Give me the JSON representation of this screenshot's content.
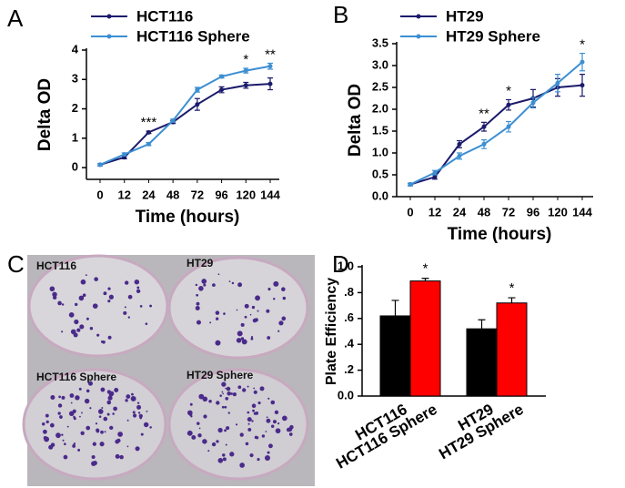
{
  "chart_data": [
    {
      "type": "line",
      "panel_label": "A",
      "x_label": "Time (hours)",
      "y_label": "Delta OD",
      "categories": [
        "0",
        "12",
        "24",
        "48",
        "72",
        "96",
        "120",
        "144"
      ],
      "ylim": [
        -0.4,
        4
      ],
      "yticks": [
        0,
        1,
        2,
        3,
        4
      ],
      "series": [
        {
          "name": "HCT116",
          "color": "#1b1a6b",
          "values": [
            0.1,
            0.35,
            1.2,
            1.55,
            2.15,
            2.65,
            2.8,
            2.85
          ],
          "errors": [
            0.04,
            0.05,
            0.04,
            0.05,
            0.2,
            0.1,
            0.1,
            0.2
          ]
        },
        {
          "name": "HCT116 Sphere",
          "color": "#3c8fd2",
          "values": [
            0.1,
            0.45,
            0.8,
            1.6,
            2.65,
            3.1,
            3.3,
            3.45
          ],
          "errors": [
            0.04,
            0.05,
            0.05,
            0.05,
            0.08,
            0.05,
            0.08,
            0.1
          ]
        }
      ],
      "annotations": [
        {
          "text": "***",
          "category": "24"
        },
        {
          "text": "*",
          "category": "120"
        },
        {
          "text": "**",
          "category": "144"
        }
      ]
    },
    {
      "type": "line",
      "panel_label": "B",
      "x_label": "Time (hours)",
      "y_label": "Delta OD",
      "categories": [
        "0",
        "12",
        "24",
        "48",
        "72",
        "96",
        "120",
        "144"
      ],
      "ylim": [
        0,
        3.5
      ],
      "yticks": [
        {
          "value": 0,
          "label": "0.0"
        },
        {
          "value": 0.5,
          "label": "0.5"
        },
        {
          "value": 1,
          "label": "1.0"
        },
        {
          "value": 1.5,
          "label": "1.5"
        },
        {
          "value": 2,
          "label": "2.0"
        },
        {
          "value": 2.5,
          "label": "2.5"
        },
        {
          "value": 3,
          "label": "3.0"
        },
        {
          "value": 3.5,
          "label": "3.5"
        }
      ],
      "series": [
        {
          "name": "HT29",
          "color": "#1b1a6b",
          "values": [
            0.28,
            0.45,
            1.2,
            1.6,
            2.1,
            2.25,
            2.5,
            2.55
          ],
          "errors": [
            0.03,
            0.05,
            0.08,
            0.1,
            0.12,
            0.2,
            0.2,
            0.25
          ]
        },
        {
          "name": "HT29 Sphere",
          "color": "#3c8fd2",
          "values": [
            0.28,
            0.55,
            0.93,
            1.2,
            1.6,
            2.15,
            2.6,
            3.08
          ],
          "errors": [
            0.03,
            0.05,
            0.07,
            0.1,
            0.12,
            0.12,
            0.2,
            0.2
          ]
        }
      ],
      "annotations": [
        {
          "text": "**",
          "category": "48"
        },
        {
          "text": "*",
          "category": "72"
        },
        {
          "text": "*",
          "category": "144"
        }
      ]
    },
    {
      "type": "bar",
      "panel_label": "D",
      "y_label": "Plate Efficiency",
      "categories": [
        "HCT116",
        "HCT116 Sphere",
        "HT29",
        "HT29 Sphere"
      ],
      "values": [
        0.62,
        0.89,
        0.52,
        0.72
      ],
      "errors": [
        0.12,
        0.02,
        0.07,
        0.04
      ],
      "colors": [
        "#000000",
        "#ff0000",
        "#000000",
        "#ff0000"
      ],
      "ylim": [
        0,
        1
      ],
      "yticks": [
        {
          "value": 0,
          "label": "0.0"
        },
        {
          "value": 0.2,
          "label": ".2"
        },
        {
          "value": 0.4,
          "label": ".4"
        },
        {
          "value": 0.6,
          "label": ".6"
        },
        {
          "value": 0.8,
          "label": ".8"
        },
        {
          "value": 1,
          "label": "1.0"
        }
      ],
      "annotations": [
        {
          "text": "*",
          "category": "HCT116 Sphere"
        },
        {
          "text": "*",
          "category": "HT29 Sphere"
        }
      ]
    }
  ],
  "photo_panel": {
    "panel_label": "C",
    "labels": [
      "HCT116",
      "HT29",
      "HCT116 Sphere",
      "HT29 Sphere"
    ]
  }
}
